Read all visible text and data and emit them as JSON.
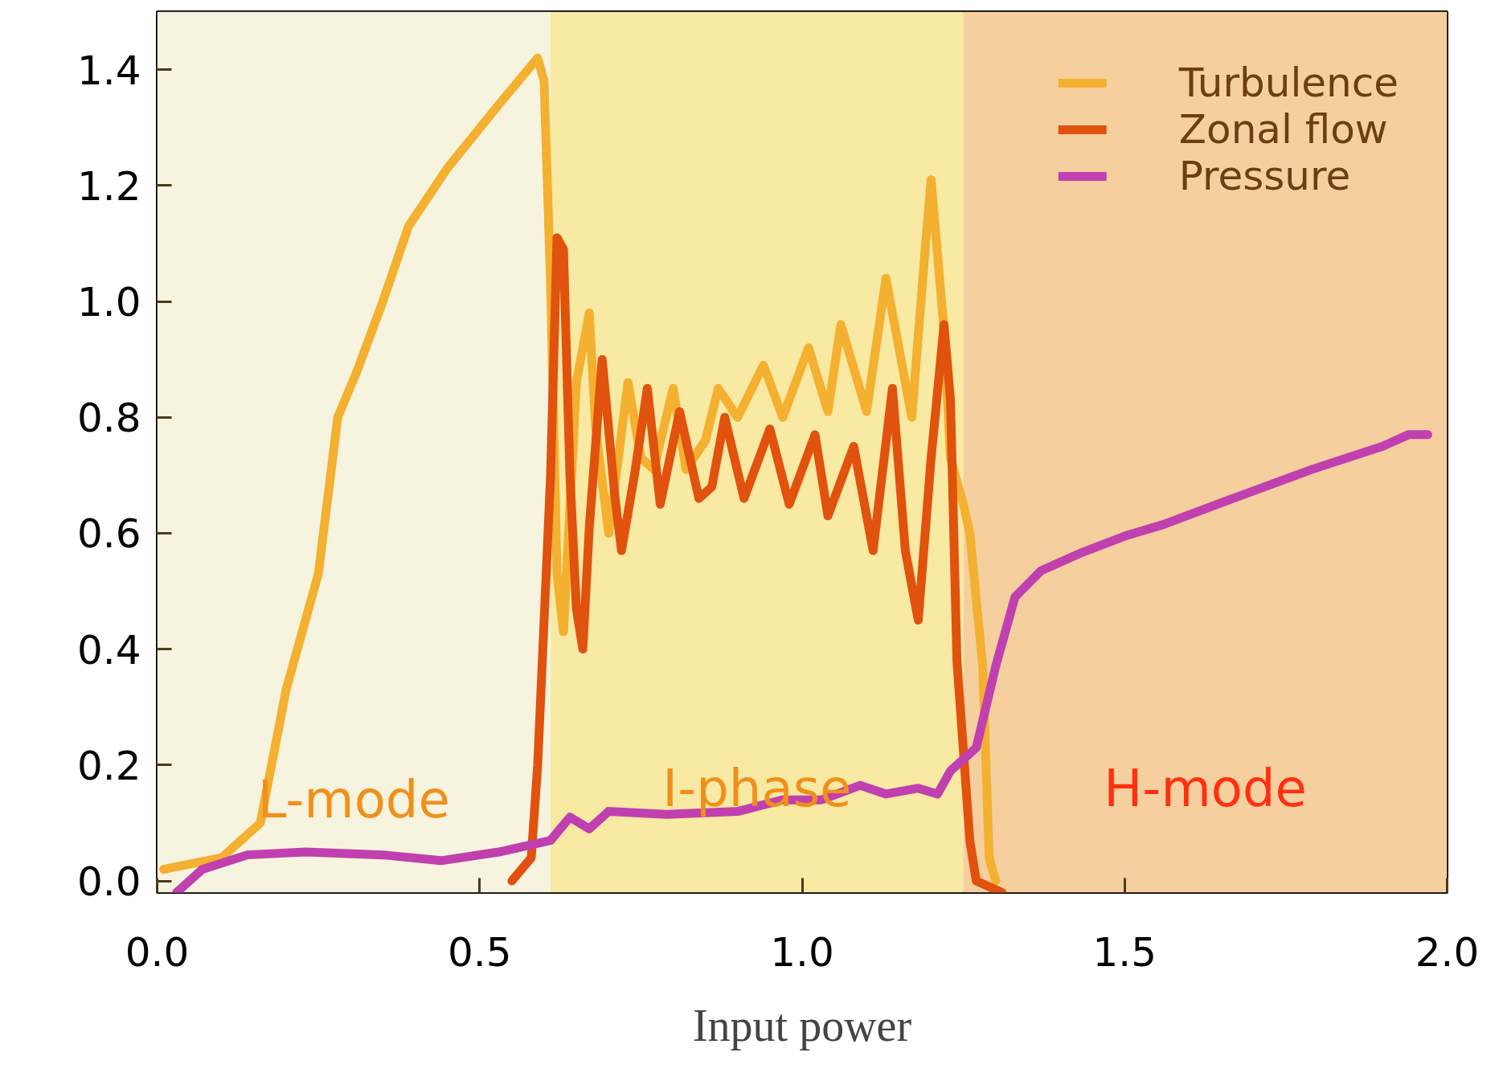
{
  "chart_data": {
    "type": "line",
    "xlabel": "Input power",
    "xlim": [
      0.0,
      2.0
    ],
    "ylim": [
      -0.02,
      1.5
    ],
    "xticks": [
      {
        "value": 0.0,
        "label": "0.0"
      },
      0.5,
      {
        "value": 1.0,
        "label": "1.0"
      },
      1.5,
      {
        "value": 2.0,
        "label": "2.0"
      }
    ],
    "yticks": [
      {
        "value": 0.0,
        "label": "0.0"
      },
      0.2,
      0.4,
      0.6,
      0.8,
      {
        "value": 1.0,
        "label": "1.0"
      },
      1.2,
      1.4
    ],
    "grid": false,
    "legend": "top right",
    "marker": "none",
    "line_style": "solid",
    "bands": [
      {
        "axis": "x",
        "from": 0.0,
        "to": 0.61,
        "label": "L-mode",
        "color": "#f6f4de"
      },
      {
        "axis": "x",
        "from": 0.61,
        "to": 1.25,
        "label": "I-phase",
        "color": "#f8e9a3"
      },
      {
        "axis": "x",
        "from": 1.25,
        "to": 2.0,
        "label": "H-mode",
        "color": "#f6cf9f"
      }
    ],
    "series": [
      {
        "name": "Turbulence",
        "color": "#f4b030",
        "x": [
          0.01,
          0.1,
          0.16,
          0.2,
          0.25,
          0.28,
          0.31,
          0.35,
          0.39,
          0.45,
          0.53,
          0.59,
          0.6,
          0.61,
          0.62,
          0.63,
          0.65,
          0.67,
          0.68,
          0.7,
          0.73,
          0.75,
          0.77,
          0.8,
          0.82,
          0.85,
          0.87,
          0.9,
          0.94,
          0.97,
          1.01,
          1.04,
          1.06,
          1.1,
          1.13,
          1.17,
          1.19,
          1.2,
          1.22,
          1.23,
          1.25,
          1.26,
          1.28,
          1.29,
          1.3
        ],
        "values": [
          0.02,
          0.04,
          0.1,
          0.33,
          0.53,
          0.8,
          0.88,
          1.0,
          1.13,
          1.23,
          1.34,
          1.42,
          1.38,
          1.03,
          0.53,
          0.43,
          0.86,
          0.98,
          0.78,
          0.6,
          0.86,
          0.73,
          0.71,
          0.85,
          0.71,
          0.76,
          0.85,
          0.8,
          0.89,
          0.8,
          0.92,
          0.81,
          0.96,
          0.81,
          1.04,
          0.8,
          1.08,
          1.21,
          0.95,
          0.73,
          0.65,
          0.6,
          0.37,
          0.04,
          0.0
        ]
      },
      {
        "name": "Zonal flow",
        "color": "#e0520e",
        "x": [
          0.55,
          0.58,
          0.59,
          0.61,
          0.62,
          0.63,
          0.64,
          0.65,
          0.66,
          0.67,
          0.69,
          0.71,
          0.72,
          0.74,
          0.76,
          0.78,
          0.81,
          0.84,
          0.86,
          0.88,
          0.91,
          0.95,
          0.98,
          1.02,
          1.04,
          1.08,
          1.11,
          1.14,
          1.16,
          1.18,
          1.2,
          1.22,
          1.23,
          1.24,
          1.26,
          1.27,
          1.31
        ],
        "values": [
          0.0,
          0.04,
          0.2,
          0.7,
          1.11,
          1.09,
          0.7,
          0.47,
          0.4,
          0.61,
          0.9,
          0.66,
          0.57,
          0.7,
          0.85,
          0.65,
          0.81,
          0.66,
          0.68,
          0.8,
          0.66,
          0.78,
          0.65,
          0.77,
          0.63,
          0.75,
          0.57,
          0.85,
          0.57,
          0.45,
          0.73,
          0.96,
          0.83,
          0.38,
          0.07,
          0.0,
          -0.02
        ]
      },
      {
        "name": "Pressure",
        "color": "#c040b0",
        "x": [
          0.03,
          0.07,
          0.14,
          0.23,
          0.35,
          0.44,
          0.53,
          0.61,
          0.64,
          0.67,
          0.7,
          0.79,
          0.9,
          0.97,
          1.03,
          1.09,
          1.13,
          1.18,
          1.21,
          1.23,
          1.27,
          1.3,
          1.33,
          1.37,
          1.43,
          1.5,
          1.56,
          1.68,
          1.79,
          1.9,
          1.94,
          1.97
        ],
        "values": [
          -0.02,
          0.02,
          0.045,
          0.05,
          0.045,
          0.035,
          0.05,
          0.07,
          0.11,
          0.09,
          0.12,
          0.115,
          0.12,
          0.14,
          0.14,
          0.165,
          0.15,
          0.16,
          0.15,
          0.19,
          0.23,
          0.37,
          0.49,
          0.535,
          0.565,
          0.595,
          0.615,
          0.665,
          0.71,
          0.75,
          0.77,
          0.77
        ]
      }
    ]
  }
}
